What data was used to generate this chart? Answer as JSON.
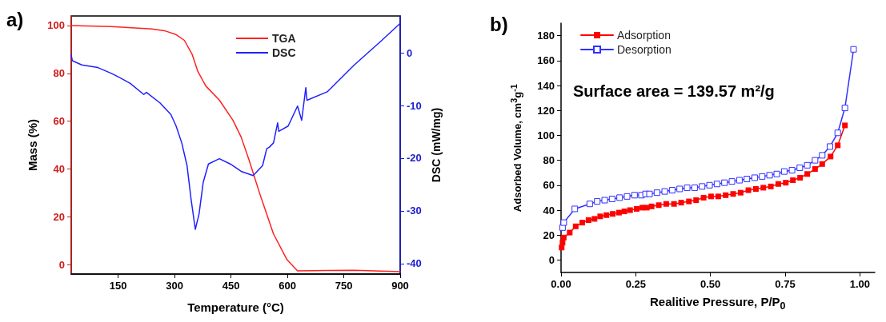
{
  "chart_data": [
    {
      "type": "line",
      "xlabel": "Temperature (°C)",
      "ylabel": "Mass (%)",
      "y2label": "DSC (mW/mg)",
      "annotations": [
        "a)"
      ],
      "xlim": [
        25,
        900
      ],
      "xticks": [
        150,
        300,
        450,
        600,
        750,
        900
      ],
      "ylim": [
        -4,
        104
      ],
      "yticks": [
        0,
        20,
        40,
        60,
        80,
        100
      ],
      "y2lim": [
        -42,
        7
      ],
      "y2ticks": [
        -40,
        -30,
        -20,
        -10,
        0
      ],
      "legend": "top",
      "marker": "none",
      "line_style": "solid",
      "series": [
        {
          "name": "TGA",
          "color": "#ff2020",
          "x": [
            25,
            132,
            240,
            276,
            304,
            326,
            347,
            362,
            383,
            419,
            455,
            477,
            498,
            527,
            563,
            599,
            627,
            706,
            778,
            900
          ],
          "values": [
            100,
            99.6,
            98.6,
            97.7,
            96.2,
            93.8,
            87.8,
            80.7,
            74.7,
            68.8,
            60.4,
            53.3,
            43.7,
            29.4,
            12.8,
            2,
            -2.7,
            -2.5,
            -2.4,
            -3
          ]
        },
        {
          "name": "DSC",
          "color": "#2020ff",
          "axis": "y2",
          "x": [
            25,
            28,
            53,
            96,
            132,
            154,
            182,
            218,
            225,
            261,
            290,
            304,
            319,
            333,
            344,
            355,
            365,
            376,
            390,
            419,
            448,
            477,
            509,
            534,
            545,
            552,
            563,
            574,
            577,
            602,
            627,
            638,
            649,
            652,
            706,
            778,
            850,
            900
          ],
          "values": [
            -0.4,
            -1.5,
            -2.3,
            -2.8,
            -3.9,
            -4.7,
            -5.8,
            -7.9,
            -7.5,
            -9.5,
            -11.7,
            -13.9,
            -17.1,
            -21.4,
            -27.9,
            -33.5,
            -30.6,
            -24.6,
            -21.1,
            -20.1,
            -21.1,
            -22.5,
            -23.3,
            -21.4,
            -18.2,
            -17.9,
            -17.1,
            -13.3,
            -14.9,
            -13.9,
            -10.1,
            -12.8,
            -6.6,
            -9,
            -7.4,
            -2.3,
            2.3,
            5.6
          ]
        }
      ]
    },
    {
      "type": "line",
      "xlabel": "Realitive Pressure, P/P$_{0}$",
      "ylabel": "Adsorbed Volume, cm$^{3}$g$^{-1}$",
      "annotations": [
        "b)",
        "Surface area = 139.57 m²/g"
      ],
      "xlim": [
        0,
        1.05
      ],
      "xticks": [
        {
          "value": 0,
          "label": "0.00"
        },
        {
          "value": 0.25,
          "label": "0.25"
        },
        {
          "value": 0.5,
          "label": "0.50"
        },
        {
          "value": 0.75,
          "label": "0.75"
        },
        {
          "value": 1,
          "label": "1.00"
        }
      ],
      "ylim": [
        -10,
        190
      ],
      "yticks": [
        0,
        20,
        40,
        60,
        80,
        100,
        120,
        140,
        160,
        180
      ],
      "legend": "top left",
      "marker": "square",
      "line_style": "solid",
      "series": [
        {
          "name": "Adsorption",
          "color": "#ff0000",
          "x": [
            0.002,
            0.005,
            0.009,
            0.029,
            0.049,
            0.071,
            0.092,
            0.112,
            0.131,
            0.152,
            0.173,
            0.194,
            0.212,
            0.231,
            0.253,
            0.272,
            0.287,
            0.303,
            0.327,
            0.352,
            0.378,
            0.402,
            0.428,
            0.452,
            0.477,
            0.502,
            0.526,
            0.551,
            0.576,
            0.601,
            0.627,
            0.652,
            0.677,
            0.702,
            0.727,
            0.752,
            0.776,
            0.8,
            0.824,
            0.85,
            0.874,
            0.902,
            0.926,
            0.95
          ],
          "values": [
            10,
            14,
            18,
            22,
            27,
            30,
            32,
            33,
            35,
            36,
            37,
            38,
            39,
            40,
            41,
            42,
            42,
            43,
            44,
            45,
            45,
            46,
            47,
            48,
            50,
            51,
            51,
            52,
            53,
            54,
            56,
            57,
            58,
            59,
            61,
            62,
            64,
            66,
            69,
            73,
            77,
            83,
            92,
            108
          ]
        },
        {
          "name": "Desorption",
          "color": "#3030ff",
          "x": [
            0.005,
            0.009,
            0.046,
            0.096,
            0.121,
            0.146,
            0.171,
            0.196,
            0.221,
            0.246,
            0.269,
            0.283,
            0.296,
            0.321,
            0.347,
            0.372,
            0.397,
            0.422,
            0.447,
            0.472,
            0.497,
            0.522,
            0.547,
            0.572,
            0.597,
            0.622,
            0.648,
            0.673,
            0.698,
            0.722,
            0.747,
            0.773,
            0.799,
            0.824,
            0.85,
            0.874,
            0.9,
            0.926,
            0.95,
            0.979
          ],
          "values": [
            26,
            30,
            41,
            45,
            47,
            48,
            49,
            50,
            51,
            52,
            52,
            53,
            53,
            54,
            55,
            56,
            57,
            58,
            58,
            59,
            60,
            61,
            62,
            63,
            64,
            65,
            66,
            67,
            68,
            69,
            71,
            72,
            74,
            76,
            80,
            84,
            91,
            102,
            122,
            169
          ]
        }
      ]
    }
  ]
}
